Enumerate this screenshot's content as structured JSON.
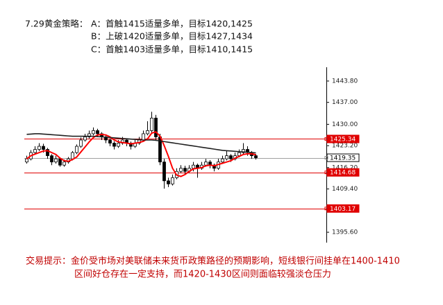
{
  "strategy": {
    "heading": "7.29黄金策略：",
    "lines": [
      "A：首触1415适量多单，目标1420,1425",
      "B：上破1420适量多单，目标1427,1434",
      "C：首触1403适量多单，目标1410,1415"
    ]
  },
  "note": [
    "交易提示：金价受市场对美联储未来货币政策路径的预期影响，短线银行间挂单在1400-1410",
    "区间好仓存在一定支持，而1420-1430区间则面临较强淡仓压力"
  ],
  "chart_data": {
    "type": "candlestick",
    "open": [
      1418,
      1419,
      1421,
      1422,
      1423,
      1422,
      1420,
      1418,
      1419,
      1417,
      1418,
      1419,
      1421,
      1423,
      1425,
      1426,
      1427,
      1428,
      1427,
      1426,
      1425,
      1424,
      1423,
      1424,
      1425,
      1424,
      1423,
      1424,
      1425,
      1427,
      1428,
      1432,
      1426,
      1418,
      1412,
      1411,
      1413,
      1415,
      1416,
      1415,
      1416,
      1417,
      1416,
      1417,
      1418,
      1417,
      1416,
      1418,
      1419,
      1420,
      1419,
      1420,
      1421,
      1422,
      1421,
      1420
    ],
    "high": [
      1420,
      1421.8,
      1423,
      1424,
      1423.8,
      1422.5,
      1420.5,
      1420,
      1419.5,
      1418.8,
      1419.6,
      1421.5,
      1423.6,
      1425.8,
      1427,
      1428,
      1429,
      1428.6,
      1427.5,
      1426.5,
      1425.5,
      1424.6,
      1425,
      1426,
      1425.5,
      1424.5,
      1425,
      1426,
      1428,
      1431,
      1434,
      1433,
      1427,
      1419,
      1413,
      1414,
      1416,
      1417,
      1416.8,
      1417,
      1418,
      1417.5,
      1418,
      1419,
      1418.6,
      1417.5,
      1419,
      1420,
      1421.5,
      1420.5,
      1421,
      1422,
      1424,
      1423,
      1421.5,
      1420.5
    ],
    "low": [
      1417.5,
      1418.5,
      1420.5,
      1421.5,
      1421,
      1419,
      1417,
      1417.5,
      1416.5,
      1416.5,
      1417.5,
      1418.5,
      1420.5,
      1422.5,
      1424.5,
      1425.5,
      1426.5,
      1426,
      1425,
      1424,
      1423,
      1422,
      1422.5,
      1423.5,
      1423,
      1422,
      1422.5,
      1423.5,
      1424.5,
      1426.5,
      1427,
      1425,
      1417,
      1409.5,
      1410,
      1410.5,
      1412.5,
      1414.5,
      1414,
      1414.5,
      1415,
      1413,
      1415.5,
      1416.5,
      1416,
      1415,
      1415.5,
      1417.5,
      1418.5,
      1418,
      1418.5,
      1419.5,
      1420.5,
      1420,
      1419,
      1418.8
    ],
    "close": [
      1419,
      1421,
      1422,
      1423,
      1422,
      1420,
      1418,
      1419,
      1417,
      1418,
      1419,
      1421,
      1423,
      1425,
      1426,
      1427,
      1428,
      1427,
      1426,
      1425,
      1424,
      1423,
      1424,
      1425,
      1424,
      1423,
      1424,
      1425,
      1427,
      1428,
      1432,
      1426,
      1418,
      1412,
      1411,
      1413,
      1415,
      1416,
      1415,
      1416,
      1417,
      1416,
      1417,
      1418,
      1417,
      1416,
      1418,
      1419,
      1420,
      1419,
      1420,
      1421,
      1422,
      1421,
      1420,
      1419.35
    ],
    "series": [
      {
        "color": "#ff0000",
        "values": [
          1419,
          1420,
          1420.5,
          1421,
          1421.5,
          1421.6,
          1421,
          1420.4,
          1419.2,
          1418.4,
          1418.2,
          1418.8,
          1419.6,
          1421.2,
          1422.8,
          1424.4,
          1425.8,
          1426.6,
          1426.8,
          1426.6,
          1426,
          1425,
          1424.4,
          1424.2,
          1424,
          1423.8,
          1424,
          1424.2,
          1424.6,
          1425.4,
          1427.2,
          1427.6,
          1426.2,
          1423.2,
          1419.8,
          1416,
          1413.8,
          1413.4,
          1414,
          1415,
          1415.8,
          1416,
          1416.2,
          1416.8,
          1417,
          1416.8,
          1417.2,
          1417.6,
          1418,
          1418.4,
          1419.2,
          1419.8,
          1420.4,
          1420.6,
          1420.6,
          1420.3
        ]
      },
      {
        "color": "#202020",
        "values": [
          1426.8,
          1426.9,
          1427,
          1427,
          1426.9,
          1426.8,
          1426.7,
          1426.6,
          1426.5,
          1426.4,
          1426.3,
          1426.2,
          1426.2,
          1426.2,
          1426.2,
          1426.2,
          1426.2,
          1426.1,
          1426,
          1425.9,
          1425.8,
          1425.7,
          1425.6,
          1425.5,
          1425.4,
          1425.3,
          1425.2,
          1425.1,
          1425,
          1425,
          1425,
          1424.9,
          1424.7,
          1424.5,
          1424.3,
          1424.1,
          1423.9,
          1423.7,
          1423.5,
          1423.3,
          1423.1,
          1422.9,
          1422.7,
          1422.5,
          1422.3,
          1422.1,
          1421.9,
          1421.7,
          1421.6,
          1421.5,
          1421.4,
          1421.3,
          1421.2,
          1421.1,
          1421,
          1420.9
        ]
      }
    ],
    "levels": [
      {
        "value": 1425.34,
        "color": "#e00000"
      },
      {
        "value": 1414.68,
        "color": "#e00000"
      },
      {
        "value": 1403.17,
        "color": "#e00000"
      },
      {
        "value": 1419.35,
        "color": "#a0a0a0"
      }
    ],
    "ylim": [
      1392.3,
      1448.2
    ],
    "yticks": [
      {
        "value": 1443.8,
        "label": "1443.80"
      },
      {
        "value": 1437,
        "label": "1437.00"
      },
      {
        "value": 1430,
        "label": "1430.00"
      },
      {
        "value": 1423.2,
        "label": "1423.20"
      },
      {
        "value": 1416.2,
        "label": "1416.20"
      },
      {
        "value": 1409.4,
        "label": "1409.40"
      },
      {
        "value": 1395.6,
        "label": "1395.60"
      }
    ]
  }
}
